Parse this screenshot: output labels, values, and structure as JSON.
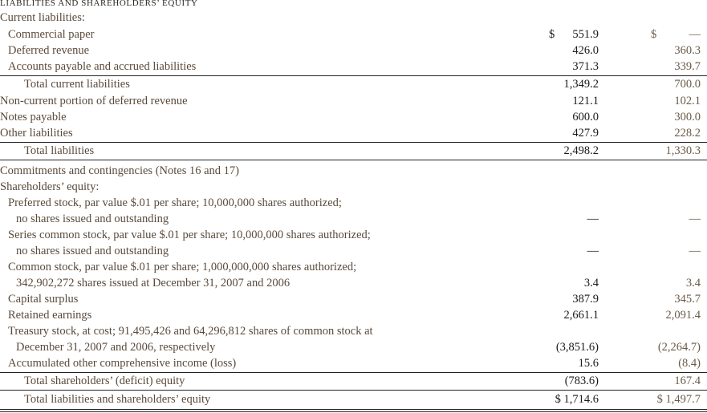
{
  "header": "LIABILITIES AND SHAREHOLDERS’ EQUITY",
  "rows": [
    {
      "label": "Current liabilities:",
      "indent": 0,
      "v1": "",
      "v2": ""
    },
    {
      "label": "Commercial paper",
      "indent": 1,
      "dollar": true,
      "v1": "551.9",
      "v2": "—"
    },
    {
      "label": "Deferred revenue",
      "indent": 1,
      "v1": "426.0",
      "v2": "360.3"
    },
    {
      "label": "Accounts payable and accrued liabilities",
      "indent": 1,
      "v1": "371.3",
      "v2": "339.7",
      "rule": true
    },
    {
      "label": "Total current liabilities",
      "indent": 3,
      "v1": "1,349.2",
      "v2": "700.0"
    },
    {
      "label": "Non-current portion of deferred revenue",
      "indent": 0,
      "v1": "121.1",
      "v2": "102.1"
    },
    {
      "label": "Notes payable",
      "indent": 0,
      "v1": "600.0",
      "v2": "300.0"
    },
    {
      "label": "Other liabilities",
      "indent": 0,
      "v1": "427.9",
      "v2": "228.2",
      "rule": true
    },
    {
      "label": "Total liabilities",
      "indent": 3,
      "v1": "2,498.2",
      "v2": "1,330.3",
      "rule": true
    },
    {
      "label": "Commitments and contingencies (Notes 16 and 17)",
      "indent": 0,
      "v1": "",
      "v2": ""
    },
    {
      "label": "Shareholders’ equity:",
      "indent": 0,
      "v1": "",
      "v2": ""
    },
    {
      "label": "Preferred stock, par value $.01 per share; 10,000,000 shares authorized;",
      "indent": 1,
      "v1": "",
      "v2": ""
    },
    {
      "label": "no shares issued and outstanding",
      "indent": 2,
      "v1": "—",
      "v2": "—"
    },
    {
      "label": "Series common stock, par value $.01 per share; 10,000,000 shares authorized;",
      "indent": 1,
      "v1": "",
      "v2": ""
    },
    {
      "label": "no shares issued and outstanding",
      "indent": 2,
      "v1": "—",
      "v2": "—"
    },
    {
      "label": "Common stock, par value $.01 per share; 1,000,000,000 shares authorized;",
      "indent": 1,
      "v1": "",
      "v2": ""
    },
    {
      "label": "342,902,272 shares issued at December 31, 2007 and 2006",
      "indent": 2,
      "v1": "3.4",
      "v2": "3.4"
    },
    {
      "label": "Capital surplus",
      "indent": 1,
      "v1": "387.9",
      "v2": "345.7"
    },
    {
      "label": "Retained earnings",
      "indent": 1,
      "v1": "2,661.1",
      "v2": "2,091.4"
    },
    {
      "label": "Treasury stock, at cost; 91,495,426 and 64,296,812 shares of common stock at",
      "indent": 1,
      "v1": "",
      "v2": ""
    },
    {
      "label": "December 31, 2007 and 2006, respectively",
      "indent": 2,
      "v1": "(3,851.6)",
      "v2": "(2,264.7)"
    },
    {
      "label": "Accumulated other comprehensive income (loss)",
      "indent": 1,
      "v1": "15.6",
      "v2": "(8.4)",
      "rule": true
    },
    {
      "label": "Total shareholders’ (deficit) equity",
      "indent": 3,
      "v1": "(783.6)",
      "v2": "167.4",
      "rule": true
    },
    {
      "label": "Total liabilities and shareholders’ equity",
      "indent": 3,
      "v1": "$ 1,714.6",
      "v2": "$ 1,497.7",
      "double": true
    }
  ],
  "dollar_sign": "$"
}
